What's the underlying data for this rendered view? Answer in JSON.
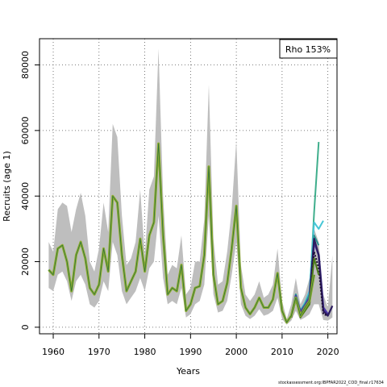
{
  "chart_data": {
    "type": "line",
    "xlabel": "Years",
    "ylabel": "Recruits (age 1)",
    "xlim": [
      1957,
      2022
    ],
    "ylim": [
      -2000,
      88000
    ],
    "xticks": [
      1960,
      1970,
      1980,
      1990,
      2000,
      2010,
      2020
    ],
    "yticks": [
      0,
      20000,
      40000,
      60000,
      80000
    ],
    "grid": true,
    "legend": {
      "position": "top-right",
      "text": "Rho 153%"
    },
    "colors": {
      "band": "#bebebe",
      "base": "#8dae2c",
      "base_core": "#2f6f42",
      "peels": [
        "#3fae8c",
        "#46c6d6",
        "#2d8f8f",
        "#4a35a8",
        "#2b1b5e",
        "#1b0a33",
        "#4a7a1a"
      ]
    },
    "band": {
      "x": [
        1959,
        1960,
        1961,
        1962,
        1963,
        1964,
        1965,
        1966,
        1967,
        1968,
        1969,
        1970,
        1971,
        1972,
        1973,
        1974,
        1975,
        1976,
        1977,
        1978,
        1979,
        1980,
        1981,
        1982,
        1983,
        1984,
        1985,
        1986,
        1987,
        1988,
        1989,
        1990,
        1991,
        1992,
        1993,
        1994,
        1995,
        1996,
        1997,
        1998,
        1999,
        2000,
        2001,
        2002,
        2003,
        2004,
        2005,
        2006,
        2007,
        2008,
        2009,
        2010,
        2011,
        2012,
        2013,
        2014,
        2015,
        2016,
        2017,
        2018,
        2019,
        2020,
        2021
      ],
      "lower": [
        12000,
        11000,
        16000,
        17000,
        14000,
        8000,
        14000,
        16000,
        13000,
        7000,
        6000,
        8000,
        14000,
        11000,
        26000,
        22000,
        11000,
        7000,
        9000,
        11000,
        15000,
        11000,
        18000,
        20000,
        34000,
        15000,
        7000,
        8000,
        7000,
        12000,
        3000,
        4000,
        7000,
        8000,
        13000,
        34000,
        10000,
        4500,
        5000,
        8000,
        16000,
        26000,
        7000,
        3500,
        2500,
        3500,
        5500,
        3500,
        4000,
        5000,
        9000,
        2500,
        800,
        2000,
        5000,
        2200,
        3000,
        4000,
        7000,
        7000,
        2200,
        2000,
        3000
      ],
      "upper": [
        26000,
        23000,
        36000,
        38000,
        37000,
        29000,
        36000,
        41000,
        34000,
        20000,
        17000,
        24000,
        38000,
        29000,
        62000,
        58000,
        34000,
        19000,
        21000,
        26000,
        42000,
        22000,
        42000,
        46000,
        85000,
        40000,
        16000,
        19000,
        18000,
        28000,
        10000,
        12000,
        20000,
        20000,
        33000,
        74000,
        27000,
        13000,
        14000,
        23000,
        36000,
        57000,
        19000,
        10000,
        8000,
        10000,
        14000,
        9000,
        10000,
        13000,
        24000,
        8000,
        2500,
        7000,
        15000,
        7000,
        10000,
        15000,
        30000,
        26000,
        10000,
        6000,
        22000
      ]
    },
    "series": [
      {
        "name": "",
        "x": [
          1959,
          1960,
          1961,
          1962,
          1963,
          1964,
          1965,
          1966,
          1967,
          1968,
          1969,
          1970,
          1971,
          1972,
          1973,
          1974,
          1975,
          1976,
          1977,
          1978,
          1979,
          1980,
          1981,
          1982,
          1983,
          1984,
          1985,
          1986,
          1987,
          1988,
          1989,
          1990,
          1991,
          1992,
          1993,
          1994,
          1995,
          1996,
          1997,
          1998,
          1999,
          2000,
          2001,
          2002,
          2003,
          2004,
          2005,
          2006,
          2007,
          2008,
          2009,
          2010,
          2011,
          2012,
          2013,
          2014,
          2015,
          2016,
          2017,
          2018
        ],
        "values": [
          17500,
          16000,
          24000,
          25000,
          20000,
          11000,
          22000,
          26000,
          21000,
          12000,
          10000,
          13000,
          24000,
          17000,
          40000,
          38000,
          22000,
          11000,
          14000,
          17000,
          27000,
          17000,
          28000,
          32000,
          56000,
          28000,
          10000,
          12000,
          11000,
          19000,
          5000,
          7000,
          12000,
          12500,
          22000,
          49000,
          16000,
          7000,
          8000,
          13500,
          24000,
          37000,
          12000,
          6000,
          4000,
          6000,
          9000,
          6000,
          6000,
          8500,
          16500,
          5000,
          1500,
          3500,
          10000,
          4500,
          6500,
          9000,
          35000,
          56500
        ]
      },
      {
        "name": "",
        "x": [
          2012,
          2013,
          2014,
          2015,
          2016,
          2017,
          2018,
          2019
        ],
        "values": [
          3500,
          10000,
          5000,
          7500,
          11000,
          32000,
          30000,
          32500
        ]
      },
      {
        "name": "",
        "x": [
          2012,
          2013,
          2014,
          2015,
          2016,
          2017,
          2018
        ],
        "values": [
          3500,
          10000,
          5000,
          7000,
          10000,
          28000,
          25000
        ]
      },
      {
        "name": "",
        "x": [
          2012,
          2013,
          2014,
          2015,
          2016,
          2017,
          2018,
          2019,
          2020
        ],
        "values": [
          3500,
          9500,
          4500,
          6500,
          9000,
          26000,
          22000,
          6000,
          4000
        ]
      },
      {
        "name": "",
        "x": [
          2012,
          2013,
          2014,
          2015,
          2016,
          2017,
          2018,
          2019,
          2020,
          2021
        ],
        "values": [
          3000,
          9000,
          4000,
          6000,
          8000,
          27000,
          22000,
          5000,
          3500,
          6500
        ]
      },
      {
        "name": "",
        "x": [
          2012,
          2013,
          2014,
          2015,
          2016,
          2017,
          2018,
          2019,
          2020
        ],
        "values": [
          3000,
          8500,
          3500,
          5500,
          7000,
          23000,
          18000,
          4000,
          3500
        ]
      },
      {
        "name": "",
        "x": [
          2012,
          2013,
          2014,
          2015,
          2016,
          2017,
          2018
        ],
        "values": [
          3000,
          8500,
          3000,
          5000,
          7000,
          21000,
          16000
        ]
      },
      {
        "name": "",
        "x": [
          1959,
          1960,
          1961,
          1962,
          1963,
          1964,
          1965,
          1966,
          1967,
          1968,
          1969,
          1970,
          1971,
          1972,
          1973,
          1974,
          1975,
          1976,
          1977,
          1978,
          1979,
          1980,
          1981,
          1982,
          1983,
          1984,
          1985,
          1986,
          1987,
          1988,
          1989,
          1990,
          1991,
          1992,
          1993,
          1994,
          1995,
          1996,
          1997,
          1998,
          1999,
          2000,
          2001,
          2002,
          2003,
          2004,
          2005,
          2006,
          2007,
          2008,
          2009,
          2010,
          2011,
          2012,
          2013,
          2014,
          2015,
          2016,
          2017
        ],
        "values": [
          17500,
          16000,
          24000,
          25000,
          20000,
          11000,
          22000,
          26000,
          21000,
          12000,
          10000,
          13000,
          24000,
          17000,
          40000,
          38000,
          22000,
          11000,
          14000,
          17000,
          27000,
          17000,
          28000,
          32000,
          56000,
          28000,
          10000,
          12000,
          11000,
          19000,
          5000,
          7000,
          12000,
          12500,
          22000,
          49000,
          16000,
          7000,
          8000,
          13500,
          24000,
          37000,
          12000,
          6000,
          4000,
          6000,
          9000,
          6000,
          6000,
          8500,
          16500,
          5000,
          1500,
          3500,
          9000,
          3500,
          6000,
          8000,
          16000
        ]
      }
    ]
  },
  "footer": "stockassessment.org:IBPFAR2022_COD_final.r17634"
}
